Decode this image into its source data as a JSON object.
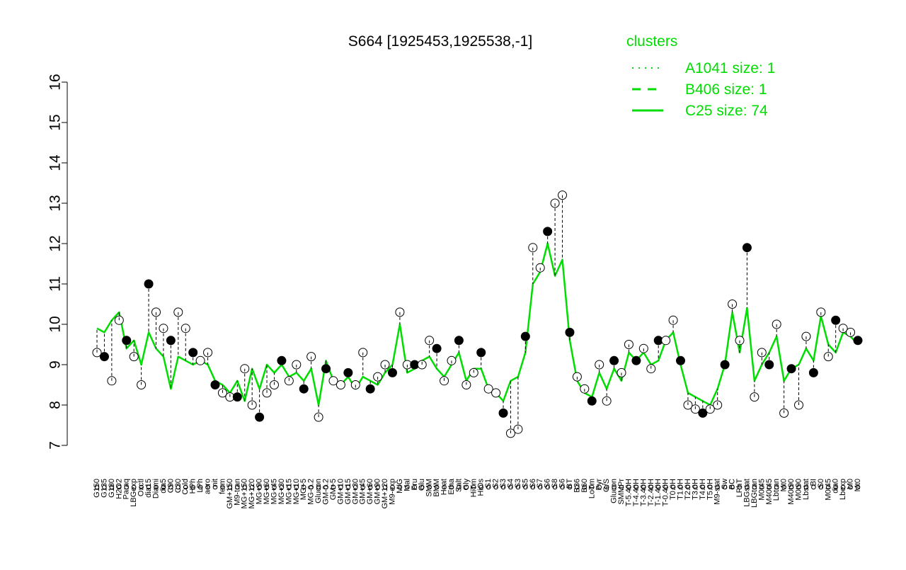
{
  "chart_data": {
    "type": "line",
    "title": "S664 [1925453,1925538,-1]",
    "xlabel": "",
    "ylabel": "",
    "ylim": [
      7,
      16
    ],
    "yticks": [
      7,
      8,
      9,
      10,
      11,
      12,
      13,
      14,
      15,
      16
    ],
    "grid": false,
    "legend": {
      "title": "clusters",
      "placement": "top-right",
      "entries": [
        {
          "label": "A1041 size: 1",
          "style": "dotted"
        },
        {
          "label": "B406 size: 1",
          "style": "dashed"
        },
        {
          "label": "C25 size: 74",
          "style": "solid"
        }
      ]
    },
    "colors": {
      "line": "#00dd00",
      "points_dark": "#000000",
      "points_light": "#ffffff"
    },
    "xticklabels": [
      "G150",
      "G135",
      "G180",
      "H2O2",
      "Paraq",
      "LBGexp",
      "Oxctl",
      "dia15",
      "Diami",
      "dia5",
      "C90",
      "C30",
      "Cold",
      "HPh",
      "LPh",
      "aero",
      "nit",
      "ferm",
      "GM+150",
      "M9-tran",
      "MG+150",
      "MG+120",
      "MG+90",
      "MG+60",
      "MG+45",
      "MG+30",
      "MG+15",
      "MG+10",
      "MG+5",
      "MG-0.2",
      "Glucon",
      "GM-0.2",
      "GM+5",
      "GM+10",
      "GM+15",
      "GM+30",
      "GM+45",
      "GM+60",
      "GM+90",
      "GM+120",
      "M9-exp",
      "M/G",
      "Mal",
      "Fru",
      "Glu",
      "SMM",
      "BMM",
      "Heat",
      "Etha",
      "Salt",
      "Gly",
      "HiTm",
      "HiOs",
      "S1",
      "S2",
      "S3",
      "S4",
      "S3",
      "S5",
      "S6",
      "S7",
      "S6",
      "S8",
      "S6",
      "BT",
      "B36",
      "B60",
      "LoTm",
      "Pyr",
      "G/S",
      "Glucon",
      "SMMPr",
      "T-5.40H",
      "T-4.40H",
      "T-3.40H",
      "T-2.40H",
      "T-1.40H",
      "T-0.40H",
      "T0.0H",
      "T1.0H",
      "T2.0H",
      "T3.0H",
      "T4.0H",
      "T5.0H",
      "M9-stat",
      "Sw",
      "BC",
      "LPhT",
      "LBGstat",
      "LBGtran",
      "M0t45",
      "M40t45",
      "Lbtran",
      "Mt0",
      "M40t90",
      "M0t90",
      "Lbstat",
      "BI",
      "S0",
      "M0t45",
      "dia0",
      "Lbexp",
      "M0",
      "Mt0"
    ],
    "series": [
      {
        "name": "C25 size: 74",
        "values": [
          9.9,
          9.8,
          10.1,
          10.3,
          9.4,
          9.6,
          9.0,
          9.8,
          9.4,
          9.2,
          8.4,
          9.2,
          9.1,
          9.0,
          9.1,
          9.0,
          8.6,
          8.5,
          8.3,
          8.6,
          8.1,
          8.9,
          8.4,
          9.0,
          8.8,
          9.0,
          8.7,
          8.8,
          8.6,
          8.9,
          8.0,
          9.1,
          8.6,
          8.5,
          8.7,
          8.4,
          8.7,
          8.6,
          8.5,
          8.8,
          9.0,
          10.0,
          8.8,
          8.9,
          9.1,
          9.2,
          8.9,
          8.7,
          9.0,
          9.3,
          8.6,
          8.9,
          8.9,
          8.4,
          8.3,
          8.1,
          8.6,
          8.7,
          9.3,
          11.0,
          11.3,
          12.0,
          11.2,
          11.6,
          9.6,
          8.6,
          8.3,
          8.2,
          8.8,
          8.4,
          8.9,
          8.6,
          9.3,
          9.1,
          9.3,
          9.0,
          9.1,
          9.6,
          9.8,
          9.0,
          8.3,
          8.2,
          8.1,
          8.0,
          8.4,
          9.0,
          10.3,
          9.3,
          10.4,
          8.6,
          9.0,
          9.3,
          9.7,
          8.6,
          8.9,
          9.0,
          9.4,
          9.1,
          10.2,
          9.5,
          9.3,
          9.8,
          9.7,
          9.5
        ]
      }
    ],
    "points": [
      [
        9.3,
        9.2,
        8.6,
        10.1,
        9.6,
        9.2,
        8.5,
        11.0,
        10.3,
        9.9
      ],
      [
        9.6,
        10.3,
        9.9,
        9.3,
        9.1,
        9.3,
        8.5,
        8.3,
        8.2,
        8.2
      ],
      [
        8.9,
        8.0,
        7.7,
        8.3,
        8.5,
        9.1,
        8.6,
        9.0,
        8.4,
        9.2
      ],
      [
        7.7,
        8.9,
        8.6,
        8.5,
        8.8,
        8.5,
        9.3,
        8.4,
        8.7,
        9.0
      ],
      [
        8.8,
        10.3,
        9.0,
        9.0,
        9.0,
        9.6,
        9.4,
        8.6,
        9.1,
        9.6
      ],
      [
        8.5,
        8.8,
        9.3,
        8.4,
        8.3,
        7.8,
        7.3,
        7.4,
        9.7,
        11.9
      ],
      [
        11.4,
        12.3,
        13.0,
        13.2,
        9.8,
        8.7,
        8.4,
        8.1,
        9.0,
        8.1
      ],
      [
        9.1,
        8.8,
        9.5,
        9.1,
        9.4,
        8.9,
        9.6,
        9.6,
        10.1,
        9.1
      ],
      [
        8.0,
        7.9,
        7.8,
        7.9,
        8.0,
        9.0,
        10.5,
        9.6,
        11.9,
        8.2
      ],
      [
        9.3,
        9.0,
        10.0,
        7.8,
        8.9,
        8.0,
        9.7,
        8.8,
        10.3,
        9.2
      ],
      [
        10.1,
        9.9,
        9.8,
        9.6
      ]
    ],
    "annotation": "○"
  }
}
